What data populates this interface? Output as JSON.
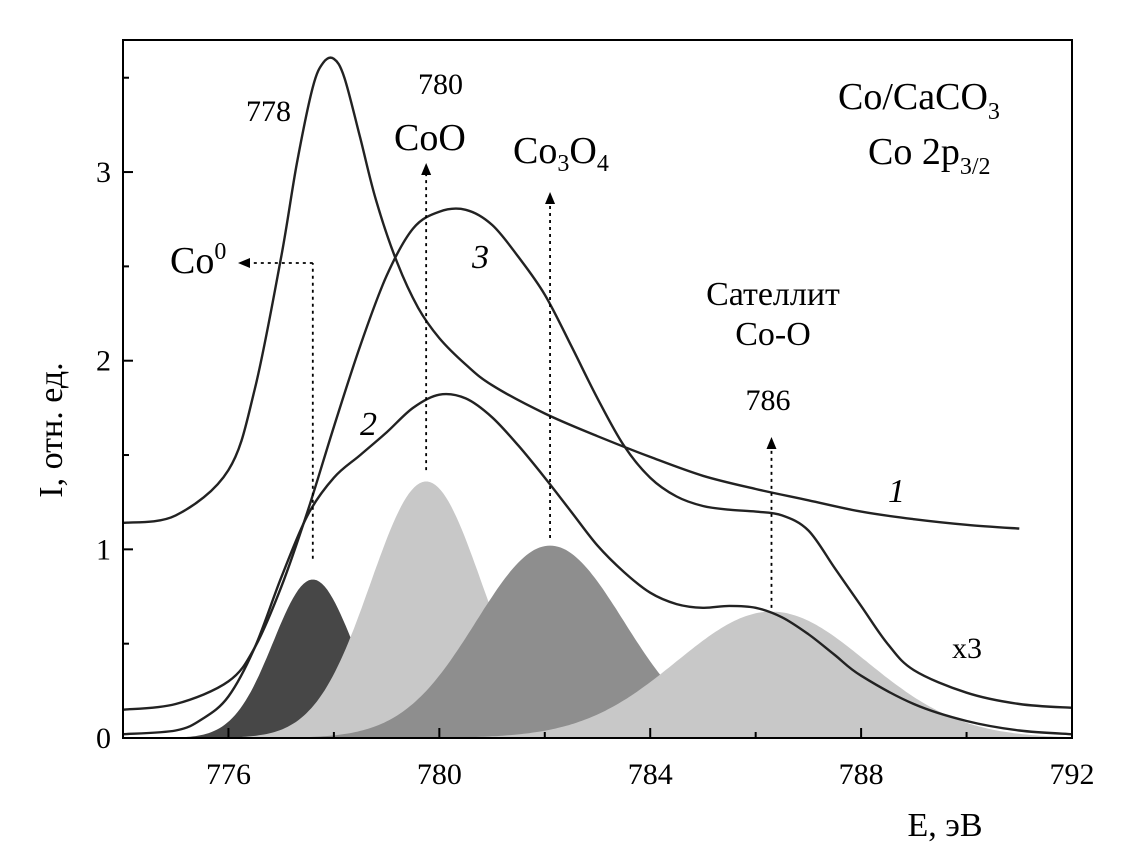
{
  "chart_data": {
    "type": "line",
    "title": "",
    "xlabel": "E, эВ",
    "ylabel": "I, отн. ед.",
    "xlim": [
      774,
      792
    ],
    "ylim": [
      0,
      3.7
    ],
    "x_ticks": [
      776,
      780,
      784,
      788,
      792
    ],
    "y_ticks": [
      0,
      1,
      2,
      3
    ],
    "grid": false,
    "legend": "none",
    "sample_label": {
      "main": "Co/CaCO",
      "main_sub": "3",
      "line2": "Co 2p",
      "line2_sub": "3/2"
    },
    "series": [
      {
        "name": "1",
        "color": "#222222",
        "x": [
          774.0,
          775.0,
          776.0,
          776.5,
          777.0,
          777.3,
          777.6,
          777.8,
          778.0,
          778.2,
          778.5,
          778.8,
          779.2,
          779.6,
          780.0,
          780.5,
          781.0,
          782.0,
          783.0,
          784.0,
          785.0,
          786.0,
          787.0,
          788.0,
          789.0,
          790.0,
          791.0
        ],
        "y": [
          1.14,
          1.18,
          1.42,
          1.85,
          2.55,
          3.05,
          3.45,
          3.58,
          3.6,
          3.5,
          3.18,
          2.85,
          2.52,
          2.28,
          2.12,
          1.98,
          1.87,
          1.72,
          1.6,
          1.49,
          1.39,
          1.32,
          1.26,
          1.2,
          1.16,
          1.13,
          1.11
        ]
      },
      {
        "name": "2",
        "color": "#222222",
        "x": [
          774.0,
          775.0,
          775.5,
          776.0,
          776.5,
          777.0,
          777.5,
          778.0,
          778.5,
          779.0,
          779.5,
          780.0,
          780.5,
          781.0,
          781.5,
          782.0,
          782.5,
          783.0,
          783.5,
          784.0,
          784.5,
          785.0,
          785.5,
          786.0,
          786.5,
          787.0,
          787.5,
          788.0,
          789.0,
          790.0,
          791.0,
          792.0
        ],
        "y": [
          0.02,
          0.04,
          0.1,
          0.22,
          0.48,
          0.85,
          1.18,
          1.38,
          1.5,
          1.62,
          1.75,
          1.82,
          1.8,
          1.7,
          1.55,
          1.38,
          1.2,
          1.02,
          0.88,
          0.77,
          0.71,
          0.69,
          0.7,
          0.69,
          0.64,
          0.55,
          0.44,
          0.33,
          0.18,
          0.09,
          0.04,
          0.02
        ]
      },
      {
        "name": "3",
        "color": "#222222",
        "x": [
          774.0,
          775.0,
          776.0,
          776.5,
          777.0,
          777.5,
          778.0,
          778.5,
          779.0,
          779.5,
          780.0,
          780.5,
          781.0,
          781.5,
          782.0,
          782.5,
          783.0,
          783.5,
          784.0,
          784.5,
          785.0,
          785.5,
          786.0,
          786.5,
          787.0,
          787.5,
          788.0,
          788.5,
          789.0,
          790.0,
          791.0,
          792.0
        ],
        "y": [
          0.15,
          0.18,
          0.3,
          0.48,
          0.8,
          1.2,
          1.65,
          2.08,
          2.45,
          2.7,
          2.79,
          2.8,
          2.72,
          2.55,
          2.35,
          2.08,
          1.8,
          1.55,
          1.38,
          1.28,
          1.23,
          1.21,
          1.2,
          1.18,
          1.1,
          0.9,
          0.7,
          0.5,
          0.36,
          0.24,
          0.18,
          0.16
        ]
      }
    ],
    "peaks": [
      {
        "name": "Co0",
        "center": 777.6,
        "height": 0.84,
        "sigma": 0.75,
        "color": "#474747"
      },
      {
        "name": "CoO",
        "center": 779.75,
        "height": 1.36,
        "sigma": 1.05,
        "color": "#c8c8c8"
      },
      {
        "name": "Co3O4",
        "center": 782.1,
        "height": 1.02,
        "sigma": 1.4,
        "color": "#8e8e8e"
      },
      {
        "name": "satellite",
        "center": 786.3,
        "height": 0.67,
        "sigma": 1.8,
        "color": "#c8c8c8"
      }
    ],
    "annotations": {
      "e778": "778",
      "e780": "780",
      "e786": "786",
      "coo": "CoO",
      "co3o4_a": "Co",
      "co3o4_b": "3",
      "co3o4_c": "O",
      "co3o4_d": "4",
      "co0": "Co",
      "co0_sup": "0",
      "satellite_line1": "Сателлит",
      "satellite_line2": "Co-O",
      "x3": "x3"
    }
  }
}
